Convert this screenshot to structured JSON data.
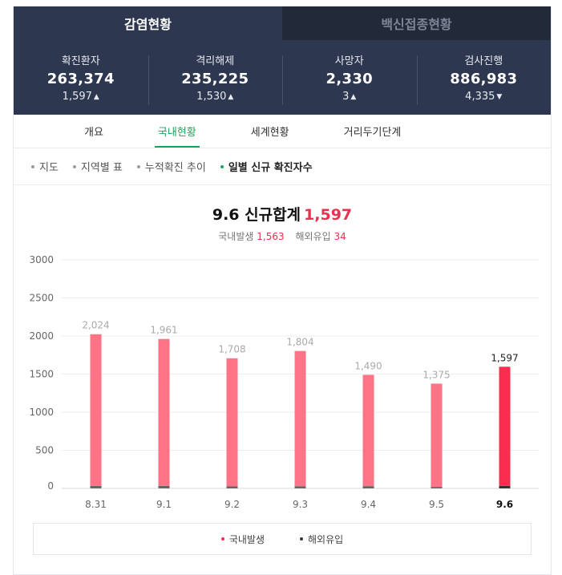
{
  "tabs_top": [
    {
      "label": "감염현황",
      "active": true
    },
    {
      "label": "백신접종현황",
      "active": false
    }
  ],
  "stats": [
    {
      "label": "확진환자",
      "value": "263,374",
      "change": "1,597",
      "direction": "up"
    },
    {
      "label": "격리해제",
      "value": "235,225",
      "change": "1,530",
      "direction": "up"
    },
    {
      "label": "사망자",
      "value": "2,330",
      "change": "3",
      "direction": "up"
    },
    {
      "label": "검사진행",
      "value": "886,983",
      "change": "4,335",
      "direction": "down"
    }
  ],
  "subtabs": [
    {
      "label": "개요",
      "active": false
    },
    {
      "label": "국내현황",
      "active": true
    },
    {
      "label": "세계현황",
      "active": false
    },
    {
      "label": "거리두기단계",
      "active": false
    }
  ],
  "filters": [
    {
      "label": "지도",
      "active": false
    },
    {
      "label": "지역별 표",
      "active": false
    },
    {
      "label": "누적확진 추이",
      "active": false
    },
    {
      "label": "일별 신규 확진자수",
      "active": true
    }
  ],
  "summary": {
    "title": "9.6 신규합계",
    "total": "1,597",
    "domestic_label": "국내발생",
    "domestic_value": "1,563",
    "overseas_label": "해외유입",
    "overseas_value": "34"
  },
  "colors": {
    "domestic": "#ff7386",
    "domestic_highlight": "#fb2d4e",
    "overseas": "#666666",
    "overseas_highlight": "#333333",
    "accent_green": "#1aa35a"
  },
  "chart_data": {
    "type": "bar",
    "stacked": true,
    "categories": [
      "8.31",
      "9.1",
      "9.2",
      "9.3",
      "9.4",
      "9.5",
      "9.6"
    ],
    "totals": [
      2024,
      1961,
      1708,
      1804,
      1490,
      1375,
      1597
    ],
    "total_labels": [
      "2,024",
      "1,961",
      "1,708",
      "1,804",
      "1,490",
      "1,375",
      "1,597"
    ],
    "series": [
      {
        "name": "국내발생",
        "values": [
          1991,
          1928,
          1682,
          1775,
          1460,
          1355,
          1563
        ]
      },
      {
        "name": "해외유입",
        "values": [
          33,
          33,
          26,
          29,
          30,
          20,
          34
        ]
      }
    ],
    "highlight_index": 6,
    "y_ticks": [
      0,
      500,
      1000,
      1500,
      2000,
      2500,
      3000
    ],
    "ylim": [
      0,
      3000
    ],
    "grid": true,
    "legend_position": "bottom"
  }
}
